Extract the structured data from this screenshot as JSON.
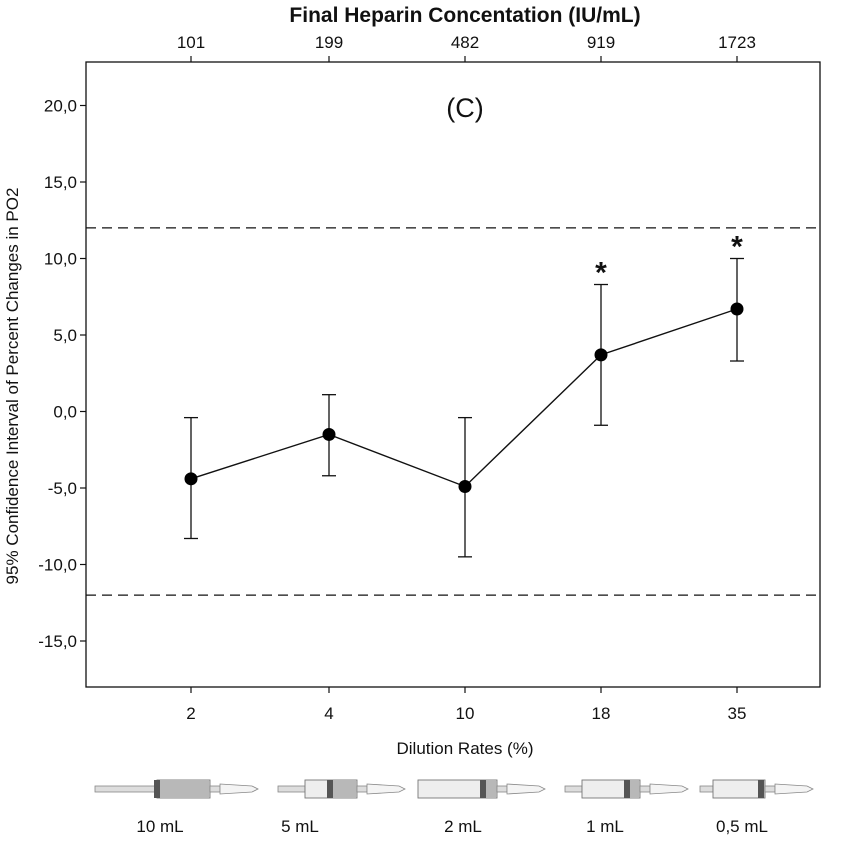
{
  "chart_data": {
    "type": "line",
    "panel_label": "(C)",
    "top_axis": {
      "title": "Final Heparin Concentation (IU/mL)",
      "tick_labels": [
        "101",
        "199",
        "482",
        "919",
        "1723"
      ]
    },
    "xlabel": "Dilution Rates (%)",
    "ylabel": "95% Confidence Interval of Percent Changes in PO2",
    "categories": [
      "2",
      "4",
      "10",
      "18",
      "35"
    ],
    "yticks": [
      "20,0",
      "15,0",
      "10,0",
      "5,0",
      "0,0",
      "-5,0",
      "-10,0",
      "-15,0"
    ],
    "ylim": [
      -17.5,
      22.3
    ],
    "series": [
      {
        "values": [
          -4.4,
          -1.5,
          -4.9,
          3.7,
          6.7
        ],
        "lower": [
          -8.3,
          -4.2,
          -9.5,
          -0.9,
          3.3
        ],
        "upper": [
          -0.4,
          1.1,
          -0.4,
          8.3,
          10.0
        ]
      }
    ],
    "reference_lines": [
      12.0,
      -12.0
    ],
    "significance_markers": [
      {
        "category": "18",
        "symbol": "*"
      },
      {
        "category": "35",
        "symbol": "*"
      }
    ],
    "grid": false,
    "syringe_labels": [
      "10 mL",
      "5 mL",
      "2 mL",
      "1 mL",
      "0,5 mL"
    ]
  }
}
